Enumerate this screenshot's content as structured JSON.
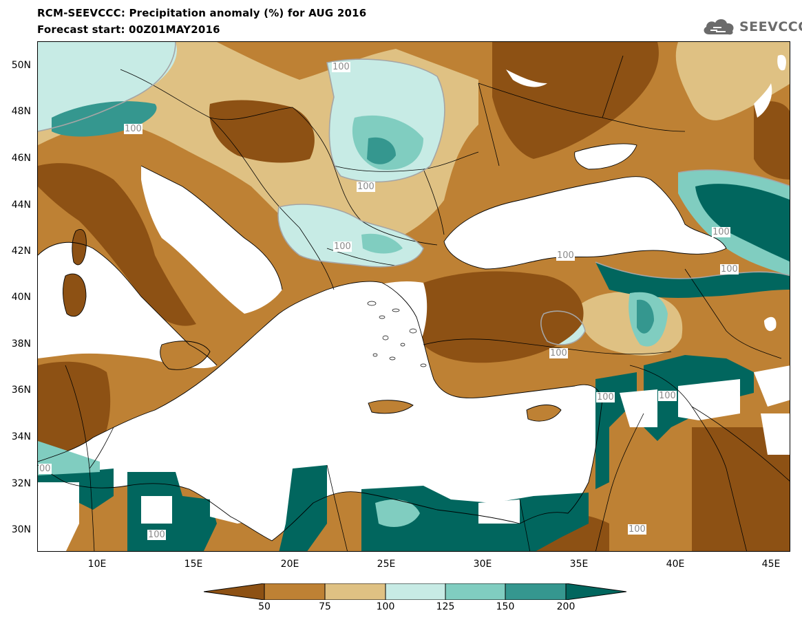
{
  "header": {
    "title_line1": "RCM-SEEVCCC: Precipitation anomaly (%) for AUG 2016",
    "title_line2": "Forecast start: 00Z01MAY2016"
  },
  "logo": {
    "text": "SEEVCCC",
    "icon": "cloud-icon"
  },
  "map": {
    "variable": "Precipitation anomaly (%)",
    "lat_labels": [
      "50N",
      "48N",
      "46N",
      "44N",
      "42N",
      "40N",
      "38N",
      "36N",
      "34N",
      "32N",
      "30N"
    ],
    "lon_labels": [
      "10E",
      "15E",
      "20E",
      "25E",
      "30E",
      "35E",
      "40E",
      "45E"
    ],
    "contour_labels": [
      "100",
      "100",
      "100",
      "100",
      "100",
      "100",
      "100",
      "100",
      "100",
      "100",
      "100",
      "00"
    ],
    "colors": {
      "dark_brown": "#8d5114",
      "brown": "#be8134",
      "tan": "#dfc183",
      "light_cyan": "#c7ebe5",
      "medium_teal": "#80cdc0",
      "dark_teal": "#35978f",
      "darkest_teal": "#01665e",
      "sea": "#ffffff"
    }
  },
  "colorbar": {
    "labels": [
      "50",
      "75",
      "100",
      "125",
      "150",
      "200"
    ],
    "colors": [
      "#8d5114",
      "#be8134",
      "#dfc183",
      "#c7ebe5",
      "#80cdc0",
      "#35978f",
      "#01665e"
    ]
  }
}
